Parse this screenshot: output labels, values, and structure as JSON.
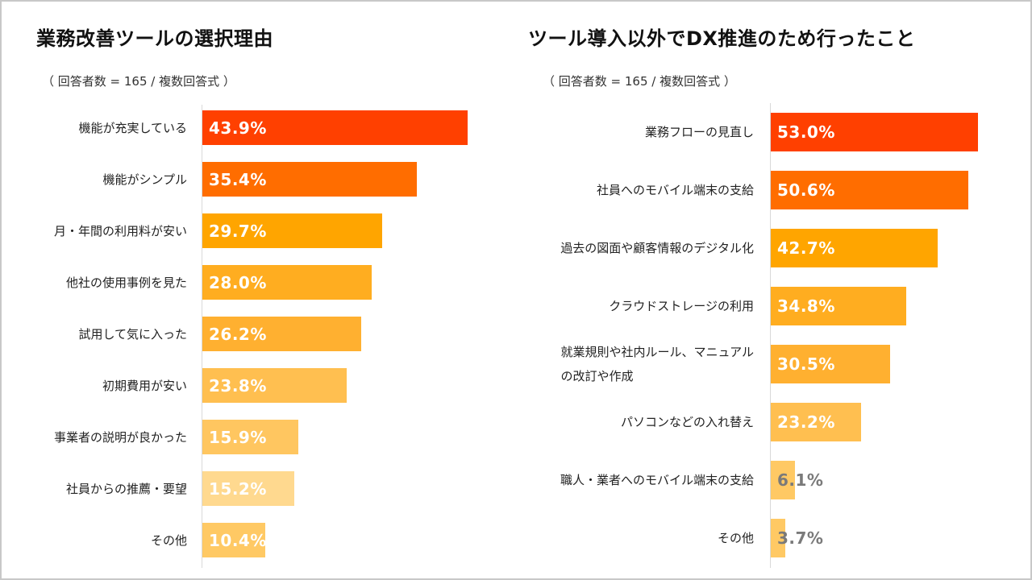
{
  "chart_data": [
    {
      "type": "bar",
      "orientation": "horizontal",
      "title": "業務改善ツールの選択理由",
      "subtitle": "（ 回答者数 = 165 / 複数回答式 ）",
      "categories": [
        "機能が充実している",
        "機能がシンプル",
        "月・年間の利用料が安い",
        "他社の使用事例を見た",
        "試用して気に入った",
        "初期費用が安い",
        "事業者の説明が良かった",
        "社員からの推薦・要望",
        "その他"
      ],
      "values": [
        43.9,
        35.4,
        29.7,
        28.0,
        26.2,
        23.8,
        15.9,
        15.2,
        10.4
      ],
      "value_labels": [
        "43.9%",
        "35.4%",
        "29.7%",
        "28.0%",
        "26.2%",
        "23.8%",
        "15.9%",
        "15.2%",
        "10.4%"
      ],
      "colors": [
        "#ff4000",
        "#ff6d00",
        "#ffa500",
        "#ffad20",
        "#ffb030",
        "#ffbf50",
        "#ffc660",
        "#ffd98f",
        "#ffc964"
      ],
      "xlim": [
        0,
        100
      ],
      "grid": false
    },
    {
      "type": "bar",
      "orientation": "horizontal",
      "title": "ツール導入以外でDX推進のため行ったこと",
      "subtitle": "（ 回答者数 = 165 / 複数回答式 ）",
      "categories": [
        "業務フローの見直し",
        "社員へのモバイル端末の支給",
        "過去の図面や顧客情報のデジタル化",
        "クラウドストレージの利用",
        "就業規則や社内ルール、マニュアルの改訂や作成",
        "パソコンなどの入れ替え",
        "職人・業者へのモバイル端末の支給",
        "その他"
      ],
      "category_lines": [
        [
          "業務フローの見直し"
        ],
        [
          "社員へのモバイル端末の支給"
        ],
        [
          "過去の図面や顧客情報のデジタル化"
        ],
        [
          "クラウドストレージの利用"
        ],
        [
          "就業規則や社内ルール、マニュアル",
          "の改訂や作成"
        ],
        [
          "パソコンなどの入れ替え"
        ],
        [
          "職人・業者へのモバイル端末の支給"
        ],
        [
          "その他"
        ]
      ],
      "values": [
        53.0,
        50.6,
        42.7,
        34.8,
        30.5,
        23.2,
        6.1,
        3.7
      ],
      "value_labels": [
        "53.0%",
        "50.6%",
        "42.7%",
        "34.8%",
        "30.5%",
        "23.2%",
        "6.1%",
        "3.7%"
      ],
      "colors": [
        "#ff4000",
        "#ff6d00",
        "#ffa500",
        "#ffad20",
        "#ffb030",
        "#ffbf50",
        "#ffc964",
        "#ffc964"
      ],
      "xlim": [
        0,
        100
      ],
      "grid": false
    }
  ]
}
